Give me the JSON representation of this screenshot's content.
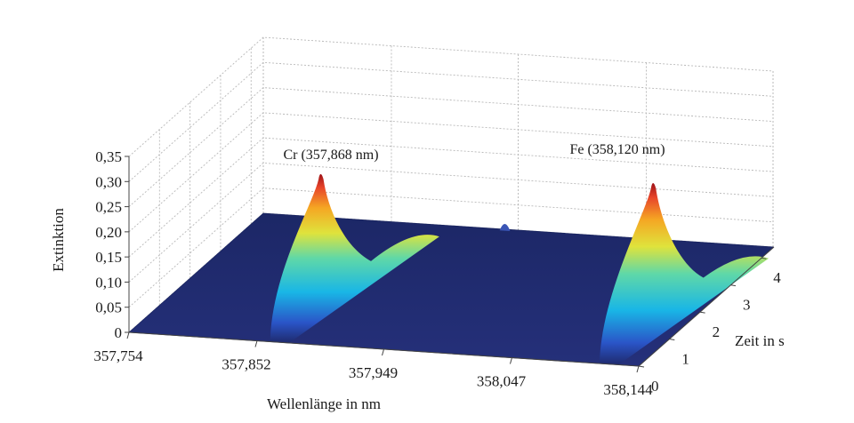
{
  "chart_data": {
    "type": "surface",
    "xlabel": "Wellenlänge in nm",
    "ylabel": "Zeit in s",
    "zlabel": "Extinktion",
    "x_ticks": [
      "357,754",
      "357,852",
      "357,949",
      "358,047",
      "358,144"
    ],
    "y_ticks": [
      "0",
      "1",
      "2",
      "3",
      "4"
    ],
    "z_ticks": [
      "0",
      "0,05",
      "0,10",
      "0,15",
      "0,20",
      "0,25",
      "0,30",
      "0,35"
    ],
    "xlim": [
      357.754,
      358.144
    ],
    "ylim": [
      0,
      4.4
    ],
    "zlim": [
      0,
      0.35
    ],
    "colormap": "jet",
    "surface_base_color": "#1f2a6e",
    "peaks": [
      {
        "label": "Cr (357,868 nm)",
        "wavelength": 357.868,
        "peak_time": 1.4,
        "peak_extinction": 0.26
      },
      {
        "label": "Fe (358,120 nm)",
        "wavelength": 358.12,
        "peak_time": 1.5,
        "peak_extinction": 0.28
      }
    ],
    "minor_bump": {
      "wavelength": 357.94,
      "peak_extinction": 0.02
    }
  }
}
